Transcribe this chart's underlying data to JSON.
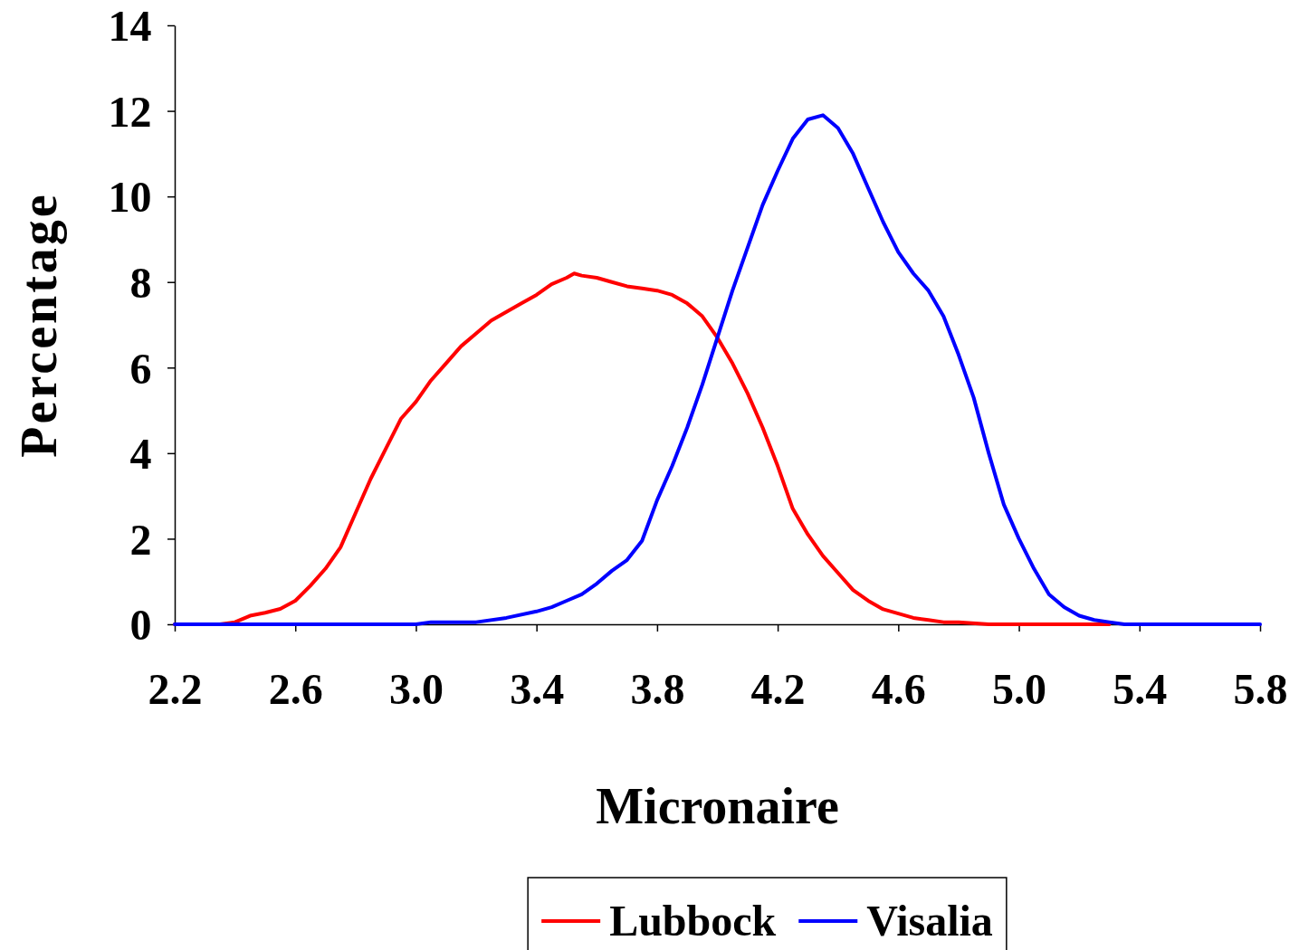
{
  "chart_data": {
    "type": "line",
    "xlabel": "Micronaire",
    "ylabel": "Percentage",
    "xlim": [
      2.2,
      5.8
    ],
    "xticks": [
      {
        "value": 2.2,
        "label": "2.2"
      },
      {
        "value": 2.6,
        "label": "2.6"
      },
      {
        "value": 3.0,
        "label": "3.0"
      },
      {
        "value": 3.4,
        "label": "3.4"
      },
      {
        "value": 3.8,
        "label": "3.8"
      },
      {
        "value": 4.2,
        "label": "4.2"
      },
      {
        "value": 4.6,
        "label": "4.6"
      },
      {
        "value": 5.0,
        "label": "5.0"
      },
      {
        "value": 5.4,
        "label": "5.4"
      },
      {
        "value": 5.8,
        "label": "5.8"
      }
    ],
    "ylim": [
      0,
      14
    ],
    "yticks": [
      0,
      2,
      4,
      6,
      8,
      10,
      12,
      14
    ],
    "grid": false,
    "legend": "bottom",
    "marker": "none",
    "line_style": "solid",
    "series": [
      {
        "name": "Lubbock",
        "color": "#ff0000",
        "x": [
          2.2,
          2.3,
          2.35,
          2.4,
          2.45,
          2.5,
          2.55,
          2.6,
          2.65,
          2.7,
          2.75,
          2.8,
          2.85,
          2.9,
          2.95,
          3.0,
          3.05,
          3.1,
          3.15,
          3.2,
          3.25,
          3.3,
          3.35,
          3.4,
          3.45,
          3.5,
          3.525,
          3.55,
          3.6,
          3.65,
          3.7,
          3.75,
          3.8,
          3.85,
          3.9,
          3.95,
          4.0,
          4.05,
          4.1,
          4.15,
          4.2,
          4.25,
          4.3,
          4.35,
          4.4,
          4.45,
          4.5,
          4.55,
          4.6,
          4.65,
          4.7,
          4.75,
          4.8,
          4.9,
          5.0,
          5.1,
          5.2,
          5.3
        ],
        "values": [
          0,
          0,
          0,
          0.05,
          0.2,
          0.27,
          0.36,
          0.55,
          0.9,
          1.3,
          1.8,
          2.6,
          3.4,
          4.1,
          4.8,
          5.2,
          5.7,
          6.1,
          6.5,
          6.8,
          7.1,
          7.3,
          7.5,
          7.7,
          7.95,
          8.1,
          8.2,
          8.15,
          8.1,
          8.0,
          7.9,
          7.85,
          7.8,
          7.7,
          7.5,
          7.2,
          6.7,
          6.1,
          5.4,
          4.6,
          3.7,
          2.7,
          2.1,
          1.6,
          1.2,
          0.8,
          0.55,
          0.35,
          0.25,
          0.15,
          0.1,
          0.05,
          0.05,
          0,
          0,
          0,
          0,
          0
        ]
      },
      {
        "name": "Visalia",
        "color": "#0000ff",
        "x": [
          2.2,
          2.5,
          3.0,
          3.05,
          3.1,
          3.2,
          3.3,
          3.4,
          3.45,
          3.5,
          3.55,
          3.6,
          3.65,
          3.7,
          3.75,
          3.8,
          3.85,
          3.9,
          3.95,
          4.0,
          4.05,
          4.1,
          4.15,
          4.2,
          4.25,
          4.3,
          4.35,
          4.4,
          4.45,
          4.5,
          4.55,
          4.6,
          4.65,
          4.7,
          4.75,
          4.8,
          4.85,
          4.9,
          4.95,
          5.0,
          5.05,
          5.1,
          5.15,
          5.2,
          5.25,
          5.3,
          5.35,
          5.5,
          5.8
        ],
        "values": [
          0,
          0,
          0,
          0.05,
          0.05,
          0.05,
          0.15,
          0.3,
          0.4,
          0.55,
          0.7,
          0.95,
          1.25,
          1.5,
          1.95,
          2.9,
          3.7,
          4.6,
          5.6,
          6.7,
          7.8,
          8.8,
          9.8,
          10.6,
          11.35,
          11.8,
          11.9,
          11.6,
          11.0,
          10.2,
          9.4,
          8.7,
          8.2,
          7.8,
          7.2,
          6.3,
          5.3,
          4.0,
          2.8,
          2.0,
          1.3,
          0.7,
          0.4,
          0.2,
          0.1,
          0.05,
          0,
          0,
          0
        ]
      }
    ]
  }
}
